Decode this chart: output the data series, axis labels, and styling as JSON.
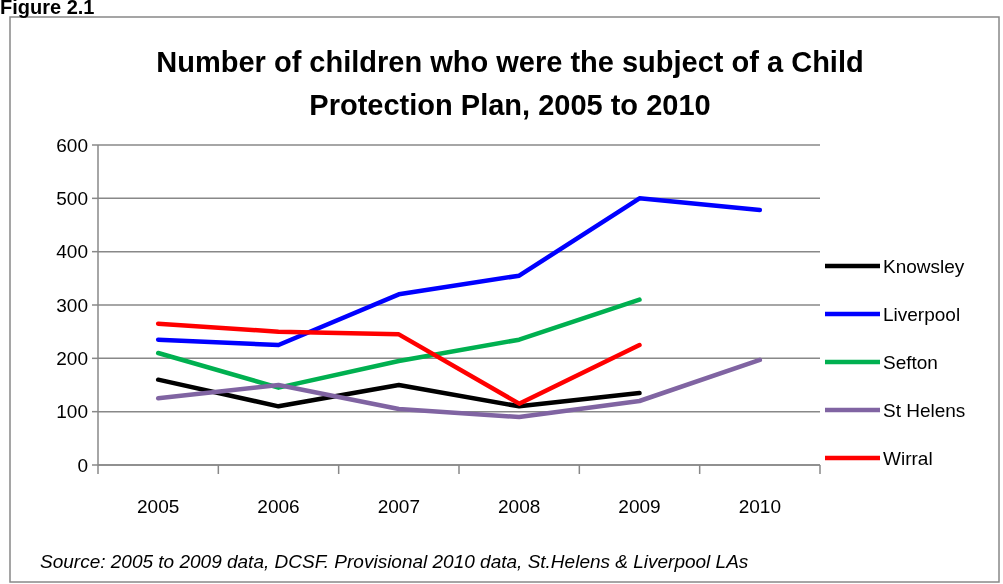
{
  "chart_data": {
    "type": "line",
    "title": "Number of children who were the subject of a Child Protection Plan, 2005 to 2010",
    "categories": [
      "2005",
      "2006",
      "2007",
      "2008",
      "2009",
      "2010"
    ],
    "series": [
      {
        "name": "Knowsley",
        "color": "#000000",
        "values": [
          160,
          110,
          150,
          110,
          135,
          null
        ]
      },
      {
        "name": "Liverpool",
        "color": "#0000ff",
        "values": [
          235,
          225,
          320,
          355,
          500,
          478
        ]
      },
      {
        "name": "Sefton",
        "color": "#00b050",
        "values": [
          210,
          145,
          195,
          235,
          310,
          null
        ]
      },
      {
        "name": "St Helens",
        "color": "#8064a2",
        "values": [
          125,
          150,
          105,
          90,
          120,
          197
        ]
      },
      {
        "name": "Wirral",
        "color": "#ff0000",
        "values": [
          265,
          250,
          245,
          115,
          225,
          null
        ]
      }
    ],
    "ylim": [
      0,
      600
    ],
    "yticks": [
      0,
      100,
      200,
      300,
      400,
      500,
      600
    ],
    "grid": "y",
    "legend": "right",
    "marker": "none",
    "line_style": "solid",
    "annotations": [
      "Figure 2.1",
      "Source: 2005 to 2009 data, DCSF. Provisional 2010 data, St.Helens & Liverpool LAs"
    ]
  }
}
